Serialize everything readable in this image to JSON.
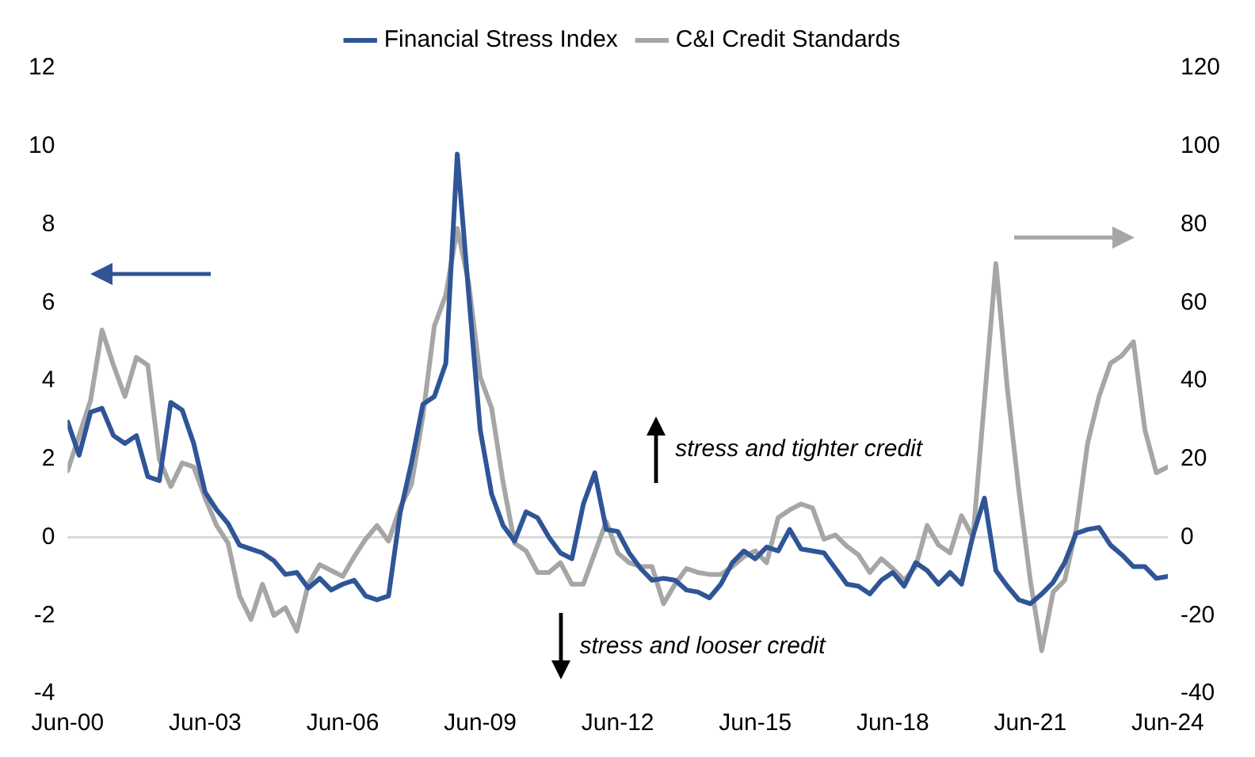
{
  "chart_data": {
    "type": "line",
    "x": [
      "2000-06",
      "2000-09",
      "2000-12",
      "2001-03",
      "2001-06",
      "2001-09",
      "2001-12",
      "2002-03",
      "2002-06",
      "2002-09",
      "2002-12",
      "2003-03",
      "2003-06",
      "2003-09",
      "2003-12",
      "2004-03",
      "2004-06",
      "2004-09",
      "2004-12",
      "2005-03",
      "2005-06",
      "2005-09",
      "2005-12",
      "2006-03",
      "2006-06",
      "2006-09",
      "2006-12",
      "2007-03",
      "2007-06",
      "2007-09",
      "2007-12",
      "2008-03",
      "2008-06",
      "2008-09",
      "2008-12",
      "2009-03",
      "2009-06",
      "2009-09",
      "2009-12",
      "2010-03",
      "2010-06",
      "2010-09",
      "2010-12",
      "2011-03",
      "2011-06",
      "2011-09",
      "2011-12",
      "2012-03",
      "2012-06",
      "2012-09",
      "2012-12",
      "2013-03",
      "2013-06",
      "2013-09",
      "2013-12",
      "2014-03",
      "2014-06",
      "2014-09",
      "2014-12",
      "2015-03",
      "2015-06",
      "2015-09",
      "2015-12",
      "2016-03",
      "2016-06",
      "2016-09",
      "2016-12",
      "2017-03",
      "2017-06",
      "2017-09",
      "2017-12",
      "2018-03",
      "2018-06",
      "2018-09",
      "2018-12",
      "2019-03",
      "2019-06",
      "2019-09",
      "2019-12",
      "2020-03",
      "2020-06",
      "2020-09",
      "2020-12",
      "2021-03",
      "2021-06",
      "2021-09",
      "2021-12",
      "2022-03",
      "2022-06",
      "2022-09",
      "2022-12",
      "2023-03",
      "2023-06",
      "2023-09",
      "2023-12",
      "2024-03",
      "2024-06"
    ],
    "series": [
      {
        "name": "Financial Stress Index",
        "color": "#2f5597",
        "values": [
          2.95,
          2.1,
          3.2,
          3.3,
          2.6,
          2.4,
          2.6,
          1.55,
          1.45,
          3.45,
          3.25,
          2.4,
          1.15,
          0.7,
          0.35,
          -0.2,
          -0.3,
          -0.4,
          -0.6,
          -0.95,
          -0.9,
          -1.3,
          -1.05,
          -1.35,
          -1.2,
          -1.1,
          -1.5,
          -1.6,
          -1.5,
          0.6,
          1.9,
          3.4,
          3.6,
          4.45,
          9.8,
          6.2,
          2.75,
          1.1,
          0.3,
          -0.1,
          0.65,
          0.5,
          0.0,
          -0.4,
          -0.55,
          0.85,
          1.65,
          0.2,
          0.15,
          -0.4,
          -0.8,
          -1.1,
          -1.05,
          -1.1,
          -1.35,
          -1.4,
          -1.55,
          -1.2,
          -0.65,
          -0.35,
          -0.55,
          -0.25,
          -0.35,
          0.2,
          -0.3,
          -0.35,
          -0.4,
          -0.8,
          -1.2,
          -1.25,
          -1.45,
          -1.1,
          -0.9,
          -1.25,
          -0.65,
          -0.85,
          -1.2,
          -0.9,
          -1.2,
          0.05,
          1.0,
          -0.85,
          -1.25,
          -1.6,
          -1.7,
          -1.45,
          -1.15,
          -0.65,
          0.1,
          0.2,
          0.25,
          -0.2,
          -0.45,
          -0.75,
          -0.75,
          -1.05,
          -1.0
        ]
      },
      {
        "name": "C&I Credit Standards",
        "color": "#a6a6a6",
        "axis": "y2",
        "values": [
          17,
          26,
          35,
          53,
          44,
          36,
          46,
          44,
          20,
          13,
          19,
          18,
          10,
          3,
          -1.5,
          -15,
          -21,
          -12,
          -20,
          -18,
          -24,
          -12,
          -7,
          -8.5,
          -10,
          -5,
          -0.5,
          3,
          -1,
          7.5,
          13.5,
          31,
          54,
          62,
          79,
          65,
          41,
          33,
          14,
          -1.5,
          -3.5,
          -9,
          -9,
          -6.5,
          -12,
          -12,
          -4,
          4,
          -4,
          -6.5,
          -7.5,
          -7.5,
          -17,
          -12,
          -8,
          -9,
          -9.5,
          -9.5,
          -7.5,
          -5,
          -3.5,
          -6.5,
          5,
          7,
          8.5,
          7.5,
          -0.5,
          0.6,
          -2.3,
          -4.5,
          -9,
          -5.5,
          -8,
          -11,
          -7.5,
          3,
          -2,
          -4,
          5.5,
          0,
          35,
          70,
          38,
          12,
          -11,
          -29,
          -14,
          -11,
          2,
          24,
          36,
          44.5,
          46.5,
          50,
          27.5,
          16.5,
          18
        ]
      }
    ],
    "xlim": [
      "2000-06",
      "2024-06"
    ],
    "xticks": [
      {
        "value": "2000-06",
        "label": "Jun-00"
      },
      {
        "value": "2003-06",
        "label": "Jun-03"
      },
      {
        "value": "2006-06",
        "label": "Jun-06"
      },
      {
        "value": "2009-06",
        "label": "Jun-09"
      },
      {
        "value": "2012-06",
        "label": "Jun-12"
      },
      {
        "value": "2015-06",
        "label": "Jun-15"
      },
      {
        "value": "2018-06",
        "label": "Jun-18"
      },
      {
        "value": "2021-06",
        "label": "Jun-21"
      },
      {
        "value": "2024-06",
        "label": "Jun-24"
      }
    ],
    "ylim": [
      -4,
      12
    ],
    "yticks": [
      -4,
      -2,
      0,
      2,
      4,
      6,
      8,
      10,
      12
    ],
    "y2lim": [
      -40,
      120
    ],
    "y2ticks": [
      -40,
      -20,
      0,
      20,
      40,
      60,
      80,
      100,
      120
    ],
    "ref_lines": [
      {
        "axis": "y",
        "value": 0,
        "color": "#d9d9d9"
      }
    ],
    "annotations": [
      "stress and tighter credit",
      "stress and looser credit"
    ],
    "legend": "top",
    "grid": false,
    "marker": "none",
    "line_style": "solid"
  }
}
